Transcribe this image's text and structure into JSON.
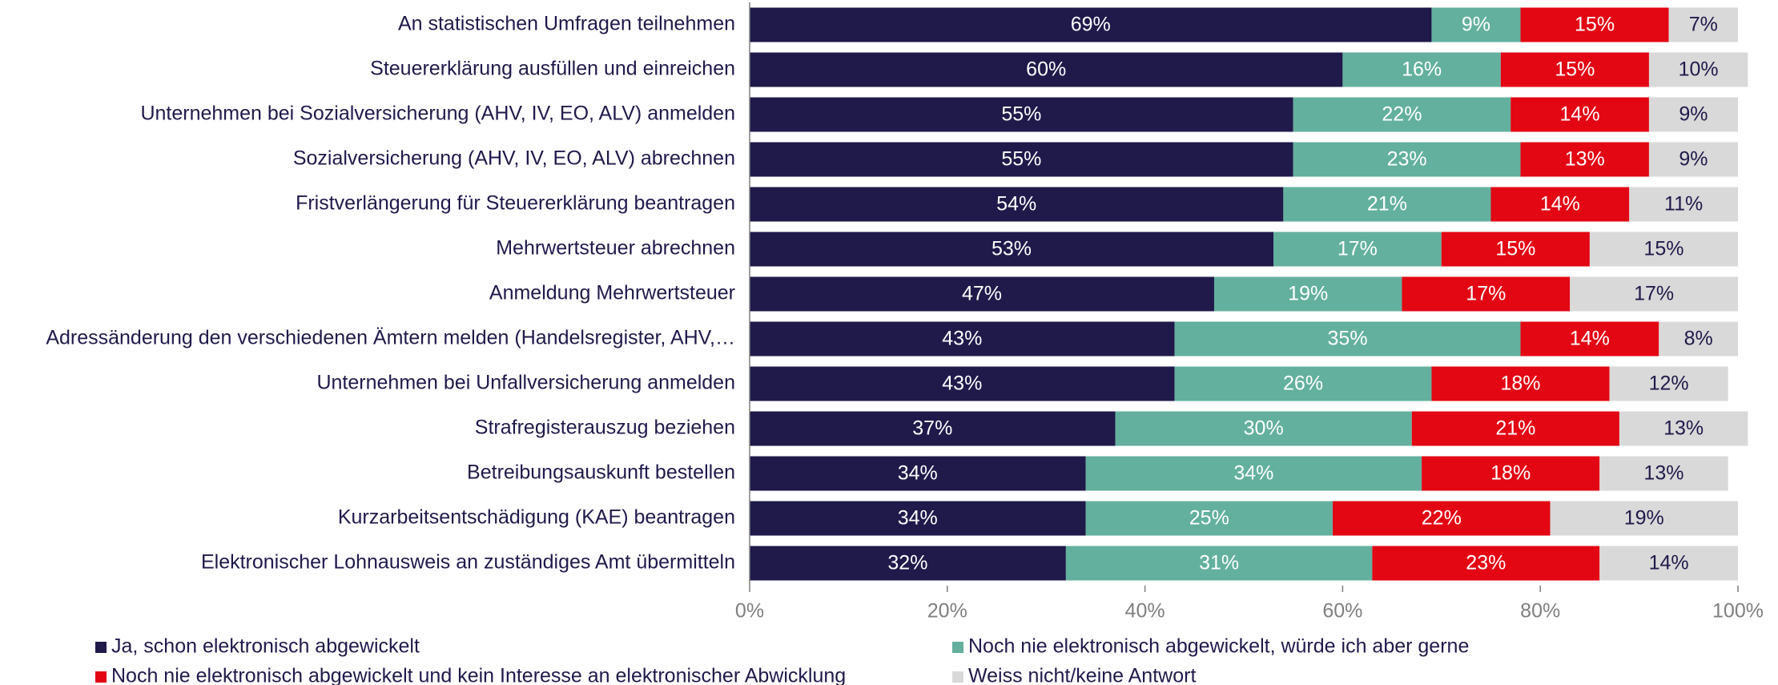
{
  "chart_data": {
    "type": "stacked_barh",
    "categories": [
      "An statistischen Umfragen teilnehmen",
      "Steuererklärung ausfüllen und einreichen",
      "Unternehmen bei Sozialversicherung (AHV, IV, EO, ALV) anmelden",
      "Sozialversicherung (AHV, IV, EO, ALV) abrechnen",
      "Fristverlängerung für Steuererklärung beantragen",
      "Mehrwertsteuer abrechnen",
      "Anmeldung Mehrwertsteuer",
      "Adressänderung den verschiedenen Ämtern melden (Handelsregister, AHV,…",
      "Unternehmen bei Unfallversicherung anmelden",
      "Strafregisterauszug beziehen",
      "Betreibungsauskunft bestellen",
      "Kurzarbeitsentschädigung (KAE) beantragen",
      "Elektronischer Lohnausweis an zuständiges Amt übermitteln"
    ],
    "series": [
      {
        "name": "Ja, schon elektronisch abgewickelt",
        "color": "#1f1a4a",
        "label_color": "#ffffff",
        "values": [
          69,
          60,
          55,
          55,
          54,
          53,
          47,
          43,
          43,
          37,
          34,
          34,
          32
        ],
        "value_labels": [
          "69%",
          "60%",
          "55%",
          "55%",
          "54%",
          "53%",
          "47%",
          "43%",
          "43%",
          "37%",
          "34%",
          "34%",
          "32%"
        ]
      },
      {
        "name": "Noch nie elektronisch abgewickelt, würde ich aber gerne",
        "color": "#63b09e",
        "label_color": "#ffffff",
        "values": [
          9,
          16,
          22,
          23,
          21,
          17,
          19,
          35,
          26,
          30,
          34,
          25,
          31
        ],
        "value_labels": [
          "9%",
          "16%",
          "22%",
          "23%",
          "21%",
          "17%",
          "19%",
          "35%",
          "26%",
          "30%",
          "34%",
          "25%",
          "31%"
        ]
      },
      {
        "name": "Noch nie elektronisch abgewickelt und kein Interesse an elektronischer Abwicklung",
        "color": "#e30613",
        "label_color": "#ffffff",
        "values": [
          15,
          15,
          14,
          13,
          14,
          15,
          17,
          14,
          18,
          21,
          18,
          22,
          23
        ],
        "value_labels": [
          "15%",
          "15%",
          "14%",
          "13%",
          "14%",
          "15%",
          "17%",
          "14%",
          "18%",
          "21%",
          "18%",
          "22%",
          "23%"
        ]
      },
      {
        "name": "Weiss nicht/keine Antwort",
        "color": "#d9d9d9",
        "label_color": "#1f1a4a",
        "values": [
          7,
          10,
          9,
          9,
          11,
          15,
          17,
          8,
          12,
          13,
          13,
          19,
          14
        ],
        "value_labels": [
          "7%",
          "10%",
          "9%",
          "9%",
          "11%",
          "15%",
          "17%",
          "8%",
          "12%",
          "13%",
          "13%",
          "19%",
          "14%"
        ]
      }
    ],
    "xlim": [
      0,
      100
    ],
    "xticks": [
      {
        "value": 0,
        "label": "0%"
      },
      {
        "value": 20,
        "label": "20%"
      },
      {
        "value": 40,
        "label": "40%"
      },
      {
        "value": 60,
        "label": "60%"
      },
      {
        "value": 80,
        "label": "80%"
      },
      {
        "value": 100,
        "label": "100%"
      }
    ],
    "legend": "bottom"
  }
}
